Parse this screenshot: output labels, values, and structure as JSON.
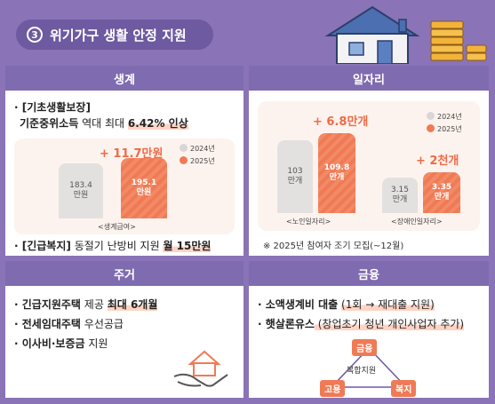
{
  "header": {
    "number": "3",
    "title": "위기가구 생활 안정 지원"
  },
  "colors": {
    "purple": "#8a73b7",
    "orange": "#f07a55",
    "gray": "#e3e0e0"
  },
  "living": {
    "heading": "생계",
    "item1_title": "· [기초생활보장]",
    "item1_prefix": "기준중위소득",
    "item1_mid": " 역대 최대 ",
    "item1_value": "6.42% 인상",
    "increase": "+ 11.7만원",
    "legend_2024": "2024년",
    "legend_2025": "2025년",
    "bar_2024_value": "183.4",
    "bar_2024_unit": "만원",
    "bar_2025_value": "195.1",
    "bar_2025_unit": "만원",
    "axis": "<생계급여>",
    "item2_bracket": "· [긴급복지]",
    "item2_text": " 동절기 난방비 지원 ",
    "item2_value": "월 15만원"
  },
  "jobs": {
    "heading": "일자리",
    "increase1": "+ 6.8만개",
    "increase2": "+ 2천개",
    "legend_2024": "2024년",
    "legend_2025": "2025년",
    "senior_2024_value": "103",
    "senior_2024_unit": "만개",
    "senior_2025_value": "109.8",
    "senior_2025_unit": "만개",
    "disabled_2024_value": "3.15",
    "disabled_2024_unit": "만개",
    "disabled_2025_value": "3.35",
    "disabled_2025_unit": "만개",
    "axis1": "<노인일자리>",
    "axis2": "<장애인일자리>",
    "note": "※ 2025년 참여자 조기 모집(~12월)"
  },
  "housing": {
    "heading": "주거",
    "item1_a": "· 긴급지원주택",
    "item1_b": " 제공 ",
    "item1_c": "최대 6개월",
    "item2_a": "· 전세임대주택",
    "item2_b": " 우선공급",
    "item3_a": "· 이사비·보증금",
    "item3_b": " 지원"
  },
  "finance": {
    "heading": "금융",
    "item1_a": "· 소액생계비 대출",
    "item1_b": "(1회 → 재대출 지원)",
    "item2_a": "· 햇살론유스",
    "item2_b": " (창업초기 청년 개인사업자 추가)",
    "tri_top": "금융",
    "tri_center": "복합지원",
    "tri_left": "고용",
    "tri_right": "복지"
  },
  "chart_data": [
    {
      "type": "bar",
      "title": "",
      "categories": [
        "<생계급여>"
      ],
      "series": [
        {
          "name": "2024년",
          "values": [
            183.4
          ]
        },
        {
          "name": "2025년",
          "values": [
            195.1
          ]
        }
      ],
      "ylabel": "만원"
    },
    {
      "type": "bar",
      "title": "",
      "categories": [
        "<노인일자리>",
        "<장애인일자리>"
      ],
      "series": [
        {
          "name": "2024년",
          "values": [
            103,
            3.15
          ]
        },
        {
          "name": "2025년",
          "values": [
            109.8,
            3.35
          ]
        }
      ],
      "ylabel": "만개"
    }
  ]
}
